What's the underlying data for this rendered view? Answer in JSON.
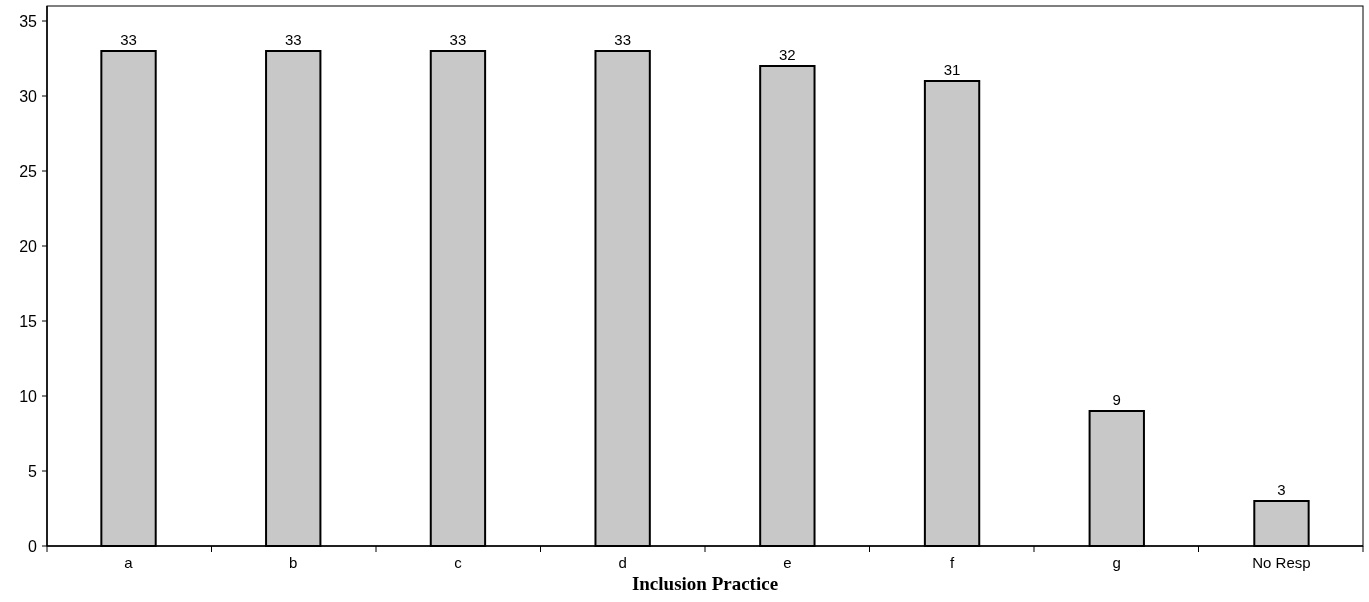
{
  "chart_data": {
    "type": "bar",
    "xlabel": "Inclusion Practice",
    "categories": [
      "a",
      "b",
      "c",
      "d",
      "e",
      "f",
      "g",
      "No Resp"
    ],
    "values": [
      33,
      33,
      33,
      33,
      32,
      31,
      9,
      3
    ],
    "color": "#c8c8c8",
    "ylim": [
      0,
      36
    ],
    "yticks": [
      0,
      5,
      10,
      15,
      20,
      25,
      30,
      35
    ],
    "data_labels": true,
    "grid": false
  }
}
